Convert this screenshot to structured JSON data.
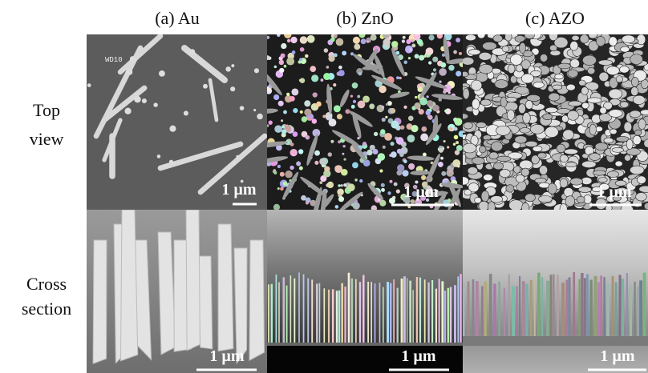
{
  "column_headers": [
    "(a) Au",
    "(b) ZnO",
    "(c) AZO"
  ],
  "row_labels": [
    [
      "Top",
      "view"
    ],
    [
      "Cross",
      "section"
    ]
  ],
  "panels": [
    [
      {
        "annotation": "WD10",
        "scale_bar": "1 µm"
      },
      {
        "scale_bar": "1 µm"
      },
      {
        "scale_bar": "1 µm"
      }
    ],
    [
      {
        "scale_bar": "1 µm"
      },
      {
        "scale_bar": "1 µm"
      },
      {
        "scale_bar": "1 µm"
      }
    ]
  ]
}
